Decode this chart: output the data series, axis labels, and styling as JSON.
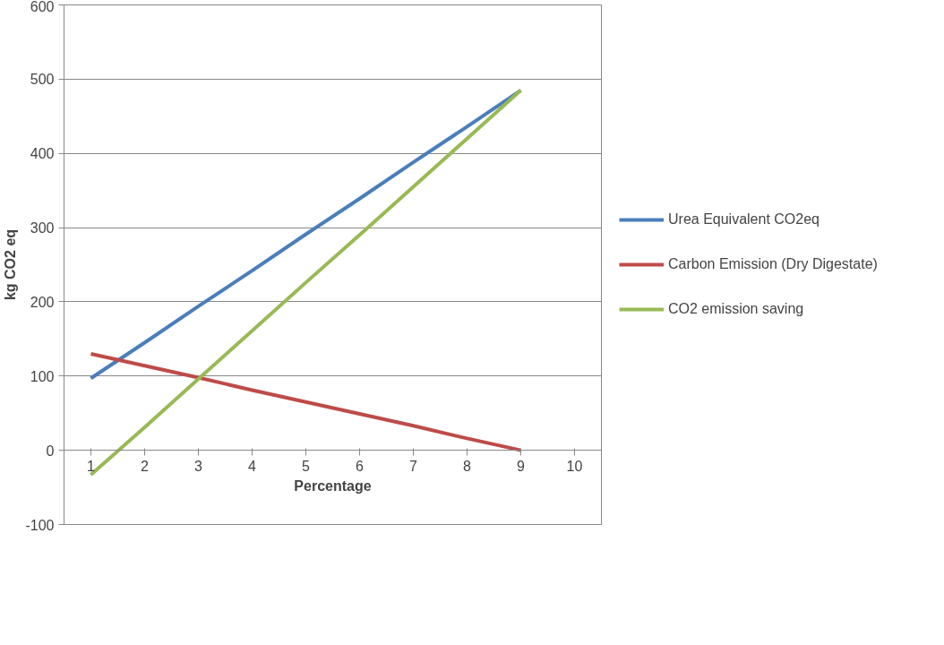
{
  "chart_data": {
    "type": "line",
    "xlabel": "Percentage",
    "ylabel": "kg CO2 eq",
    "categories": [
      "1",
      "2",
      "3",
      "4",
      "5",
      "6",
      "7",
      "8",
      "9",
      "10"
    ],
    "series": [
      {
        "name": "Urea Equivalent CO2eq",
        "color": "#4a7ebb",
        "values": [
          97,
          145,
          194,
          242,
          291,
          339,
          388,
          436,
          485,
          null
        ]
      },
      {
        "name": "Carbon Emission (Dry Digestate)",
        "color": "#be4b48",
        "values": [
          130,
          114,
          98,
          81,
          65,
          49,
          33,
          16,
          0,
          null
        ]
      },
      {
        "name": "CO2 emission saving",
        "color": "#98b954",
        "values": [
          -33,
          31,
          96,
          161,
          226,
          290,
          355,
          420,
          485,
          null
        ]
      }
    ],
    "ylim": [
      -100,
      600
    ],
    "yticks": [
      -100,
      0,
      100,
      200,
      300,
      400,
      500,
      600
    ],
    "grid": "y",
    "legend": "right",
    "marker": "none",
    "line_style": "solid"
  }
}
